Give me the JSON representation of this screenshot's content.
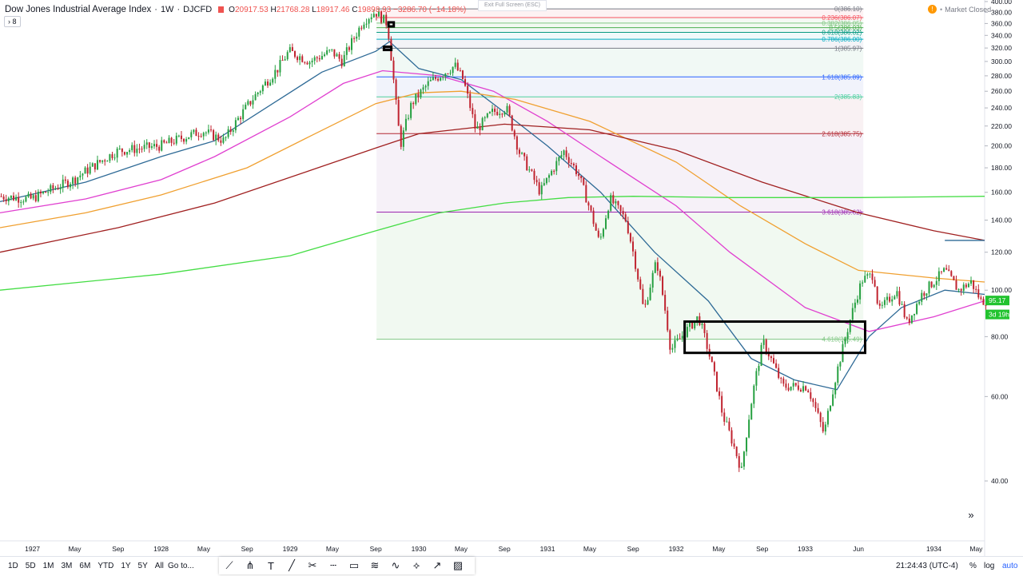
{
  "header": {
    "symbol_title": "Dow Jones Industrial Average Index",
    "interval": "1W",
    "exchange": "DJCFD",
    "open_label": "O",
    "open": "20917.53",
    "high_label": "H",
    "high": "21768.28",
    "low_label": "L",
    "low": "18917.46",
    "close_label": "C",
    "close": "19898.93",
    "change": "−3286.70 (−14.18%)",
    "indicators_count": "8",
    "exit_fullscreen": "Exit Full Screen (ESC)",
    "market_status": "Market Closed",
    "alert_icon": "exclamation-icon"
  },
  "chart_data": {
    "type": "candlestick",
    "x_range": [
      "1926-10-01",
      "1934-05-25"
    ],
    "y_range": [
      30,
      403
    ],
    "y_ticks": [
      "400.00",
      "380.00",
      "360.00",
      "340.00",
      "320.00",
      "300.00",
      "280.00",
      "260.00",
      "240.00",
      "220.00",
      "200.00",
      "180.00",
      "160.00",
      "140.00",
      "120.00",
      "100.00",
      "80.00",
      "60.00",
      "40.00"
    ],
    "x_ticks": [
      {
        "label": "1927",
        "date": "1927-01-01"
      },
      {
        "label": "May",
        "date": "1927-05-01"
      },
      {
        "label": "Sep",
        "date": "1927-09-01"
      },
      {
        "label": "1928",
        "date": "1928-01-01"
      },
      {
        "label": "May",
        "date": "1928-05-01"
      },
      {
        "label": "Sep",
        "date": "1928-09-01"
      },
      {
        "label": "1929",
        "date": "1929-01-01"
      },
      {
        "label": "May",
        "date": "1929-05-01"
      },
      {
        "label": "Sep",
        "date": "1929-09-01"
      },
      {
        "label": "1930",
        "date": "1930-01-01"
      },
      {
        "label": "May",
        "date": "1930-05-01"
      },
      {
        "label": "Sep",
        "date": "1930-09-01"
      },
      {
        "label": "1931",
        "date": "1931-01-01"
      },
      {
        "label": "May",
        "date": "1931-05-01"
      },
      {
        "label": "Sep",
        "date": "1931-09-01"
      },
      {
        "label": "1932",
        "date": "1932-01-01"
      },
      {
        "label": "May",
        "date": "1932-05-01"
      },
      {
        "label": "Sep",
        "date": "1932-09-01"
      },
      {
        "label": "1933",
        "date": "1933-01-01"
      },
      {
        "label": "Jun",
        "date": "1933-06-01"
      },
      {
        "label": "1934",
        "date": "1934-01-01"
      },
      {
        "label": "May",
        "date": "1934-05-01"
      }
    ],
    "price_keypoints": [
      [
        "1926-10-01",
        157
      ],
      [
        "1927-01-01",
        155
      ],
      [
        "1927-05-01",
        170
      ],
      [
        "1927-09-01",
        195
      ],
      [
        "1928-01-01",
        200
      ],
      [
        "1928-05-01",
        215
      ],
      [
        "1928-07-01",
        205
      ],
      [
        "1928-09-01",
        240
      ],
      [
        "1928-12-01",
        290
      ],
      [
        "1929-01-01",
        315
      ],
      [
        "1929-03-01",
        300
      ],
      [
        "1929-05-01",
        315
      ],
      [
        "1929-06-01",
        300
      ],
      [
        "1929-08-01",
        365
      ],
      [
        "1929-09-03",
        381
      ],
      [
        "1929-10-07",
        360
      ],
      [
        "1929-10-29",
        255
      ],
      [
        "1929-11-13",
        200
      ],
      [
        "1929-12-15",
        245
      ],
      [
        "1930-02-01",
        270
      ],
      [
        "1930-04-17",
        294
      ],
      [
        "1930-05-10",
        275
      ],
      [
        "1930-06-15",
        215
      ],
      [
        "1930-08-01",
        235
      ],
      [
        "1930-09-10",
        240
      ],
      [
        "1930-10-15",
        195
      ],
      [
        "1930-12-15",
        160
      ],
      [
        "1931-02-20",
        195
      ],
      [
        "1931-04-01",
        175
      ],
      [
        "1931-06-01",
        125
      ],
      [
        "1931-07-01",
        155
      ],
      [
        "1931-08-15",
        140
      ],
      [
        "1931-10-05",
        90
      ],
      [
        "1931-11-10",
        115
      ],
      [
        "1931-12-20",
        75
      ],
      [
        "1932-03-08",
        88
      ],
      [
        "1932-05-15",
        55
      ],
      [
        "1932-07-08",
        42
      ],
      [
        "1932-09-07",
        78
      ],
      [
        "1932-11-01",
        63
      ],
      [
        "1933-01-10",
        63
      ],
      [
        "1933-02-27",
        50
      ],
      [
        "1933-04-20",
        75
      ],
      [
        "1933-06-15",
        105
      ],
      [
        "1933-07-18",
        108
      ],
      [
        "1933-08-01",
        90
      ],
      [
        "1933-09-20",
        100
      ],
      [
        "1933-10-21",
        85
      ],
      [
        "1933-12-01",
        98
      ],
      [
        "1934-02-05",
        110
      ],
      [
        "1934-03-15",
        100
      ],
      [
        "1934-04-20",
        104
      ],
      [
        "1934-05-18",
        95
      ]
    ],
    "moving_averages": [
      {
        "color": "#2e6a96",
        "points": [
          [
            "1926-10-01",
            153
          ],
          [
            "1927-06-01",
            168
          ],
          [
            "1928-01-01",
            190
          ],
          [
            "1928-06-01",
            205
          ],
          [
            "1928-12-01",
            250
          ],
          [
            "1929-04-01",
            285
          ],
          [
            "1929-09-01",
            315
          ],
          [
            "1929-10-10",
            330
          ],
          [
            "1930-01-01",
            290
          ],
          [
            "1930-05-01",
            275
          ],
          [
            "1930-09-01",
            235
          ],
          [
            "1931-01-01",
            200
          ],
          [
            "1931-06-01",
            160
          ],
          [
            "1931-11-01",
            120
          ],
          [
            "1932-04-01",
            95
          ],
          [
            "1932-08-01",
            72
          ],
          [
            "1932-12-01",
            65
          ],
          [
            "1933-04-01",
            62
          ],
          [
            "1933-07-01",
            80
          ],
          [
            "1933-10-01",
            92
          ],
          [
            "1934-02-01",
            100
          ],
          [
            "1934-05-25",
            98
          ]
        ]
      },
      {
        "color": "#e040d0",
        "points": [
          [
            "1926-10-01",
            145
          ],
          [
            "1927-06-01",
            155
          ],
          [
            "1928-01-01",
            170
          ],
          [
            "1928-06-01",
            190
          ],
          [
            "1929-01-01",
            230
          ],
          [
            "1929-06-01",
            270
          ],
          [
            "1929-09-20",
            287
          ],
          [
            "1930-03-01",
            280
          ],
          [
            "1930-08-01",
            260
          ],
          [
            "1931-01-01",
            225
          ],
          [
            "1931-06-01",
            190
          ],
          [
            "1932-01-01",
            150
          ],
          [
            "1932-06-01",
            120
          ],
          [
            "1933-01-01",
            92
          ],
          [
            "1933-07-01",
            82
          ],
          [
            "1934-01-01",
            88
          ],
          [
            "1934-05-25",
            95
          ]
        ]
      },
      {
        "color": "#f0a030",
        "points": [
          [
            "1926-10-01",
            135
          ],
          [
            "1927-06-01",
            145
          ],
          [
            "1928-01-01",
            158
          ],
          [
            "1928-09-01",
            180
          ],
          [
            "1929-03-01",
            210
          ],
          [
            "1929-09-01",
            245
          ],
          [
            "1930-01-01",
            258
          ],
          [
            "1930-05-01",
            260
          ],
          [
            "1930-10-01",
            250
          ],
          [
            "1931-05-01",
            225
          ],
          [
            "1932-01-01",
            185
          ],
          [
            "1932-07-01",
            150
          ],
          [
            "1933-01-01",
            125
          ],
          [
            "1933-06-01",
            110
          ],
          [
            "1934-01-01",
            106
          ],
          [
            "1934-05-25",
            104
          ]
        ]
      },
      {
        "color": "#a02020",
        "points": [
          [
            "1926-10-01",
            120
          ],
          [
            "1927-09-01",
            135
          ],
          [
            "1928-06-01",
            152
          ],
          [
            "1929-03-01",
            178
          ],
          [
            "1929-09-01",
            198
          ],
          [
            "1930-01-01",
            212
          ],
          [
            "1930-09-01",
            222
          ],
          [
            "1931-05-01",
            216
          ],
          [
            "1932-01-01",
            196
          ],
          [
            "1932-09-01",
            168
          ],
          [
            "1933-06-01",
            145
          ],
          [
            "1934-01-01",
            133
          ],
          [
            "1934-05-25",
            127
          ]
        ]
      },
      {
        "color": "#44dd44",
        "points": [
          [
            "1926-10-01",
            100
          ],
          [
            "1928-01-01",
            108
          ],
          [
            "1929-01-01",
            118
          ],
          [
            "1929-09-01",
            133
          ],
          [
            "1930-03-01",
            145
          ],
          [
            "1930-09-01",
            152
          ],
          [
            "1931-03-01",
            156
          ],
          [
            "1931-09-01",
            157
          ],
          [
            "1932-06-01",
            156
          ],
          [
            "1933-06-01",
            156
          ],
          [
            "1934-05-25",
            157
          ]
        ]
      }
    ],
    "fib_retracement": {
      "start_date": "1929-09-03",
      "end_date": "1933-06-15",
      "levels": [
        {
          "label": "0(386.10)",
          "price": 386.1,
          "color": "#787b86"
        },
        {
          "label": "0.236(386.07)",
          "price": 370.4,
          "color": "#f7525f"
        },
        {
          "label": "0.382(386.05)",
          "price": 360.7,
          "color": "#81c784"
        },
        {
          "label": "0.5(386.03)",
          "price": 352.8,
          "color": "#4caf50"
        },
        {
          "label": "0.618(386.02)",
          "price": 345.0,
          "color": "#089981"
        },
        {
          "label": "0.786(386.00)",
          "price": 333.8,
          "color": "#00acc1"
        },
        {
          "label": "1(385.97)",
          "price": 319.6,
          "color": "#787b86"
        },
        {
          "label": "1.618(385.89)",
          "price": 278.5,
          "color": "#2962ff"
        },
        {
          "label": "2(385.83)",
          "price": 253.1,
          "color": "#4dd0a0"
        },
        {
          "label": "2.618(385.75)",
          "price": 212.1,
          "color": "#b22833"
        },
        {
          "label": "3.618(385.62)",
          "price": 145.5,
          "color": "#9c27b0"
        },
        {
          "label": "4.618(385.49)",
          "price": 79.0,
          "color": "#81c784"
        }
      ]
    },
    "annotations": [
      {
        "shape": "rect",
        "d1": "1932-01-25",
        "d2": "1933-06-20",
        "p1": 86,
        "p2": 74,
        "stroke": "#000000"
      },
      {
        "shape": "rect",
        "d1": "1929-10-07",
        "d2": "1929-10-22",
        "p1": 362,
        "p2": 355,
        "stroke": "#000000"
      },
      {
        "shape": "rect",
        "d1": "1929-09-24",
        "d2": "1929-10-15",
        "p1": 322,
        "p2": 317,
        "stroke": "#000000"
      },
      {
        "shape": "line",
        "d1": "1934-02-01",
        "d2": "1934-05-25",
        "p1": 127,
        "p2": 127,
        "stroke": "#2e6a96"
      }
    ],
    "price_labels": [
      {
        "value": "95.17",
        "price": 95.17,
        "bg": "#22c32f"
      },
      {
        "value": "3d 19h",
        "price": 89.0,
        "bg": "#22c32f"
      }
    ],
    "candle_colors": {
      "up": "#26a041",
      "down": "#c0232f"
    },
    "scale": "log"
  },
  "bottom_bar": {
    "ranges": [
      "1D",
      "5D",
      "1M",
      "3M",
      "6M",
      "YTD",
      "1Y",
      "5Y",
      "All"
    ],
    "goto": "Go to...",
    "tools": [
      "trend-line-icon",
      "pitchfork-icon",
      "text-icon",
      "ray-icon",
      "brush-icon",
      "horizontal-line-icon",
      "rectangle-icon",
      "parallel-channel-icon",
      "sine-icon",
      "fan-icon",
      "curve-icon",
      "gann-icon"
    ],
    "clock": "21:24:43 (UTC-4)",
    "percent": "%",
    "log": "log",
    "auto": "auto",
    "scroll_icon": "double-chevron-right-icon"
  }
}
